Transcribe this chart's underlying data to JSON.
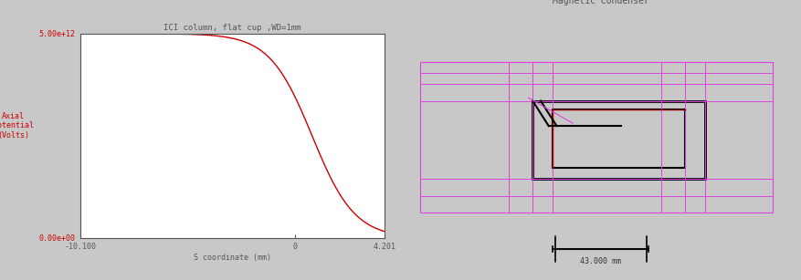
{
  "left_title": "ICI column, flat cup ,WD=1mm",
  "right_title": "Magnetic Condenser",
  "ylabel_line1": "Axial",
  "ylabel_line2": "Potential",
  "ylabel_line3": "(Volts)",
  "xlabel": "S coordinate (mm)",
  "xlim": [
    -10.1,
    4.201
  ],
  "ylim": [
    0,
    5000000000000.0
  ],
  "ytick_labels": [
    "0.00e+00",
    "5.00e+12"
  ],
  "xtick_labels": [
    "-10.100",
    "0",
    "4.201"
  ],
  "curve_color": "#cc0000",
  "overall_bg": "#c8c8c8",
  "left_panel_bg": "#c8c8c8",
  "right_panel_bg": "white",
  "plot_area_bg": "white",
  "scale_label": "43.000 mm",
  "font_color": "#cc0000",
  "title_color": "#555555",
  "magenta": "#dd44dd",
  "black": "#000000",
  "dark_red": "#880000"
}
